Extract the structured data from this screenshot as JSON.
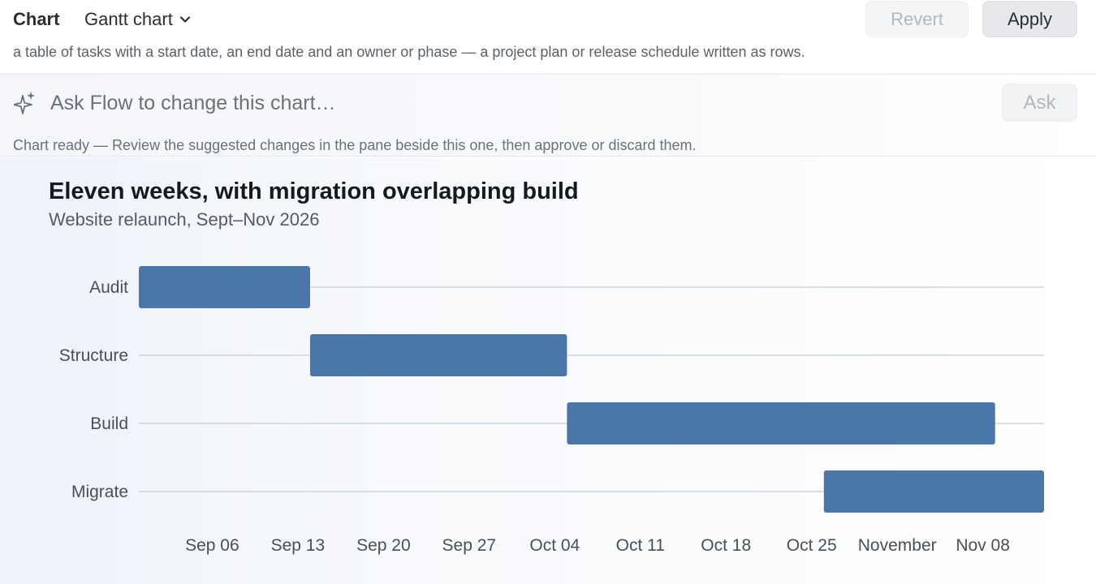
{
  "header": {
    "section_label": "Chart",
    "chart_type": "Gantt chart",
    "description": "a table of tasks with a start date, an end date and an owner or phase — a project plan or release schedule written as rows.",
    "revert_label": "Revert",
    "apply_label": "Apply"
  },
  "ask": {
    "placeholder": "Ask Flow to change this chart…",
    "button_label": "Ask",
    "status": "Chart ready — Review the suggested changes in the pane beside this one, then approve or discard them."
  },
  "icons": {
    "type_dropdown": "chevron-down-icon",
    "ask": "sparkle-icon"
  },
  "colors": {
    "bar": "#4a77a8",
    "gridline": "#cfd4da"
  },
  "chart_data": {
    "type": "gantt",
    "title": "Eleven weeks, with migration overlapping build",
    "subtitle": "Website relaunch, Sept–Nov 2026",
    "tasks": [
      {
        "name": "Audit",
        "start": "2026-08-31",
        "end": "2026-09-14"
      },
      {
        "name": "Structure",
        "start": "2026-09-14",
        "end": "2026-10-05"
      },
      {
        "name": "Build",
        "start": "2026-10-05",
        "end": "2026-11-09"
      },
      {
        "name": "Migrate",
        "start": "2026-10-26",
        "end": "2026-11-13"
      }
    ],
    "x_range": [
      "2026-08-31",
      "2026-11-13"
    ],
    "x_ticks": [
      {
        "date": "2026-09-06",
        "label": "Sep 06"
      },
      {
        "date": "2026-09-13",
        "label": "Sep 13"
      },
      {
        "date": "2026-09-20",
        "label": "Sep 20"
      },
      {
        "date": "2026-09-27",
        "label": "Sep 27"
      },
      {
        "date": "2026-10-04",
        "label": "Oct 04"
      },
      {
        "date": "2026-10-11",
        "label": "Oct 11"
      },
      {
        "date": "2026-10-18",
        "label": "Oct 18"
      },
      {
        "date": "2026-10-25",
        "label": "Oct 25"
      },
      {
        "date": "2026-11-01",
        "label": "November"
      },
      {
        "date": "2026-11-08",
        "label": "Nov 08"
      }
    ],
    "grid": "horizontal row lines"
  }
}
